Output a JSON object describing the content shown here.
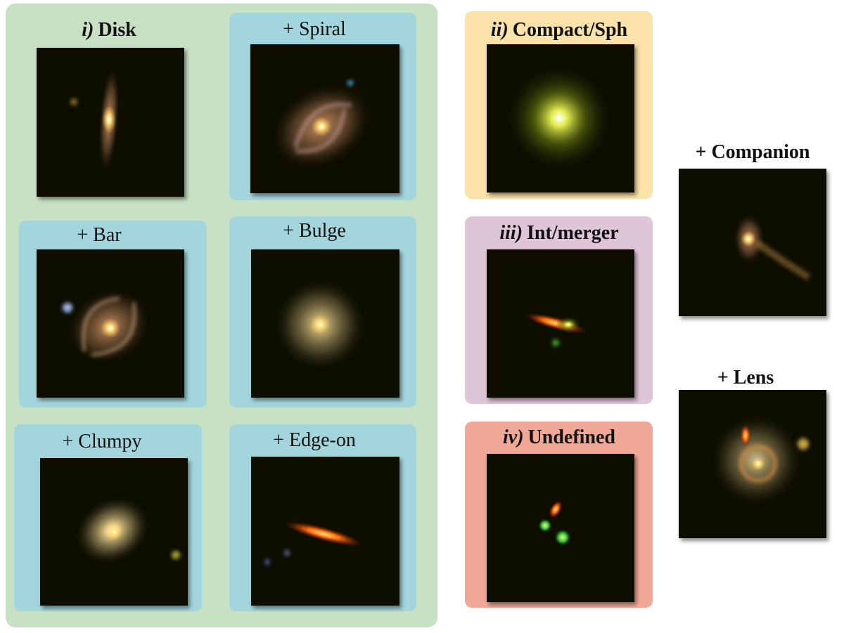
{
  "classes": [
    {
      "numeral": "i)",
      "name": "Disk"
    },
    {
      "numeral": "ii)",
      "name": "Compact/Sph"
    },
    {
      "numeral": "iii)",
      "name": "Int/merger"
    },
    {
      "numeral": "iv)",
      "name": "Undefined"
    }
  ],
  "disk_subclasses": [
    "+ Spiral",
    "+ Bar",
    "+ Bulge",
    "+ Clumpy",
    "+ Edge-on"
  ],
  "flags": [
    "+ Companion",
    "+ Lens"
  ]
}
